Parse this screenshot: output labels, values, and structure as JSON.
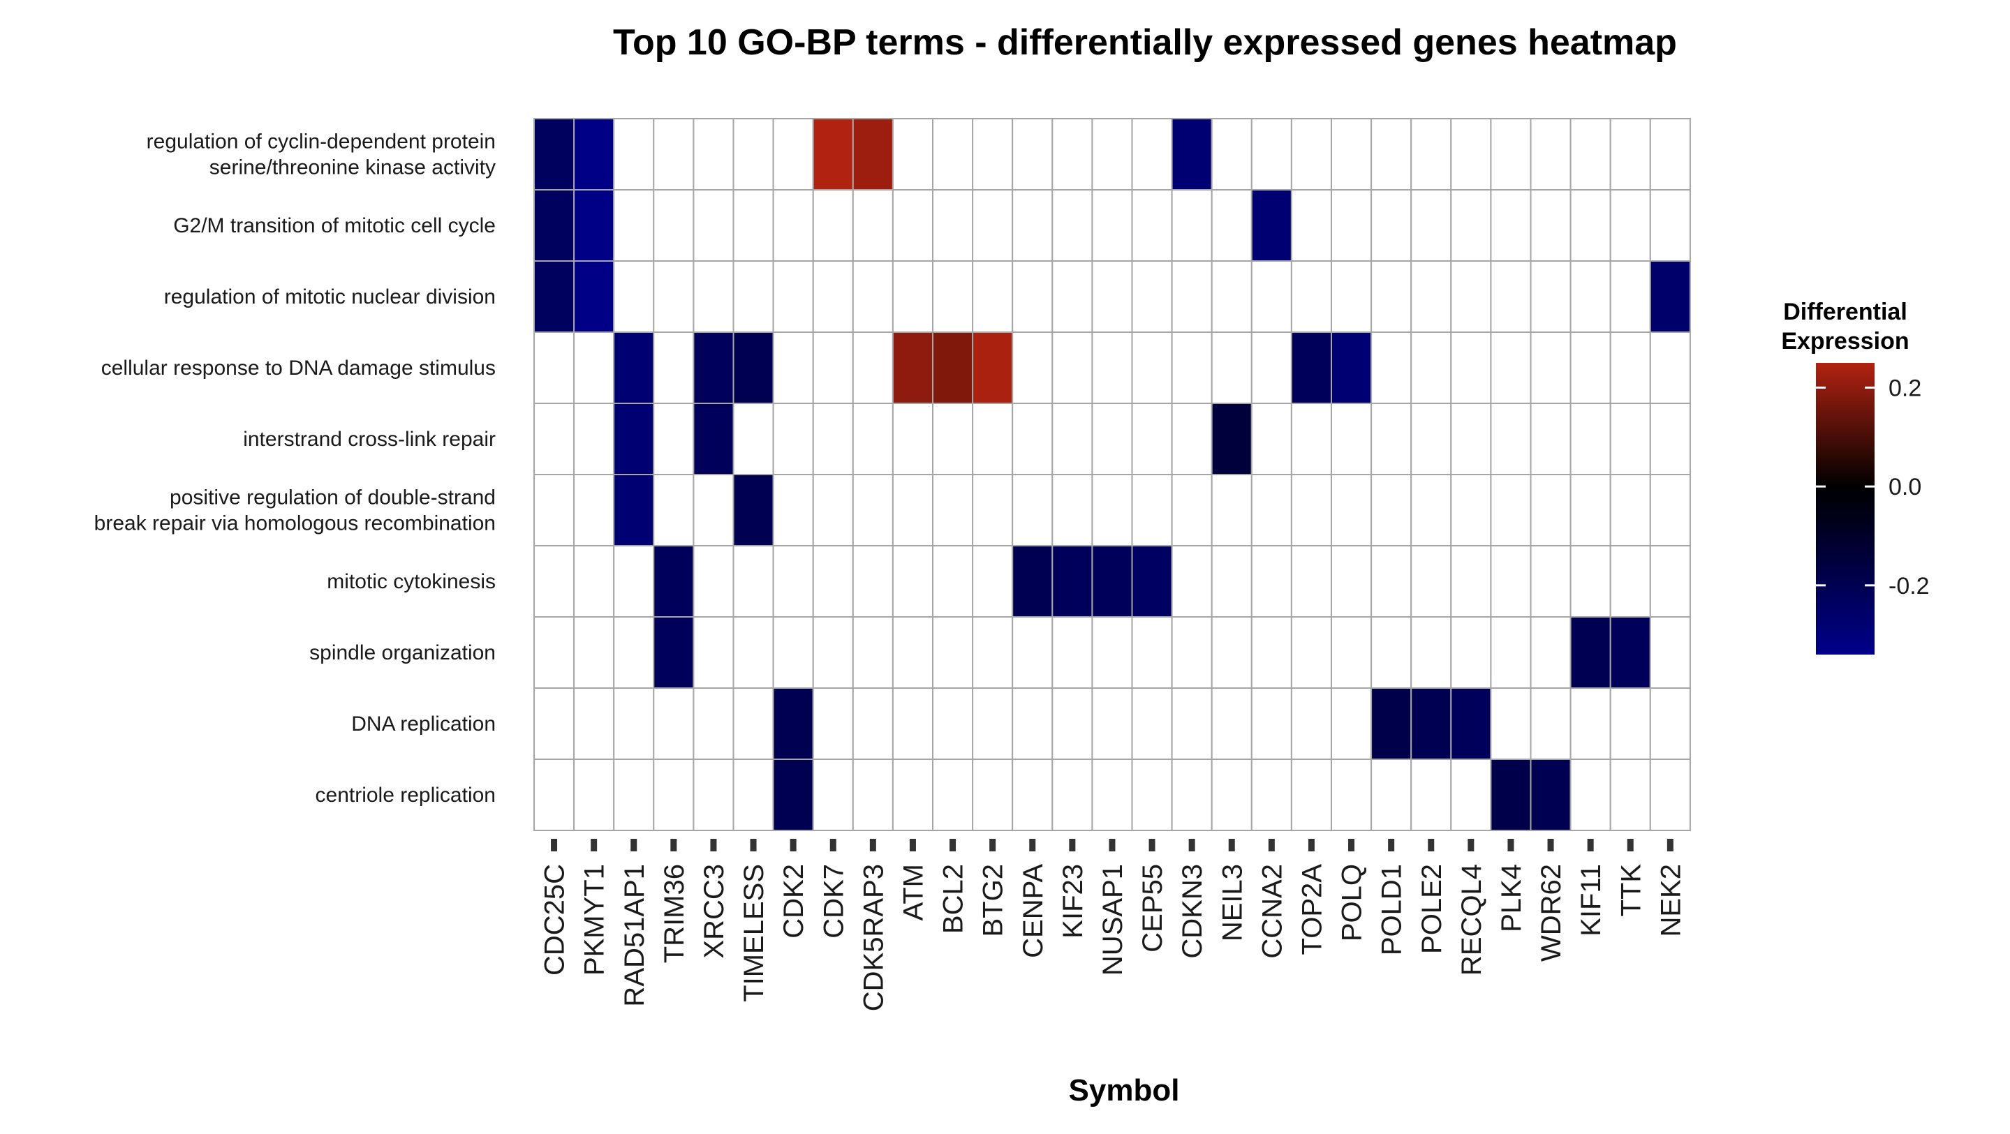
{
  "chart_data": {
    "type": "heatmap",
    "title": "Top 10 GO-BP terms - differentially expressed genes heatmap",
    "xlabel": "Symbol",
    "ylabel": "",
    "x": [
      "CDC25C",
      "PKMYT1",
      "RAD51AP1",
      "TRIM36",
      "XRCC3",
      "TIMELESS",
      "CDK2",
      "CDK7",
      "CDK5RAP3",
      "ATM",
      "BCL2",
      "BTG2",
      "CENPA",
      "KIF23",
      "NUSAP1",
      "CEP55",
      "CDKN3",
      "NEIL3",
      "CCNA2",
      "TOP2A",
      "POLQ",
      "POLD1",
      "POLE2",
      "RECQL4",
      "PLK4",
      "WDR62",
      "KIF11",
      "TTK",
      "NEK2"
    ],
    "y": [
      [
        "regulation of cyclin-dependent protein",
        "serine/threonine kinase activity"
      ],
      [
        "G2/M transition of mitotic cell cycle"
      ],
      [
        "regulation of mitotic nuclear division"
      ],
      [
        "cellular response to DNA damage stimulus"
      ],
      [
        "interstrand cross-link repair"
      ],
      [
        "positive regulation of double-strand",
        "break repair via homologous recombination"
      ],
      [
        "mitotic cytokinesis"
      ],
      [
        "spindle organization"
      ],
      [
        "DNA replication"
      ],
      [
        "centriole replication"
      ]
    ],
    "values": [
      [
        -0.23,
        -0.33,
        null,
        null,
        null,
        null,
        null,
        0.25,
        0.22,
        null,
        null,
        null,
        null,
        null,
        null,
        null,
        -0.28,
        null,
        null,
        null,
        null,
        null,
        null,
        null,
        null,
        null,
        null,
        null,
        null
      ],
      [
        -0.23,
        -0.33,
        null,
        null,
        null,
        null,
        null,
        null,
        null,
        null,
        null,
        null,
        null,
        null,
        null,
        null,
        null,
        null,
        -0.28,
        null,
        null,
        null,
        null,
        null,
        null,
        null,
        null,
        null,
        null
      ],
      [
        -0.23,
        -0.33,
        null,
        null,
        null,
        null,
        null,
        null,
        null,
        null,
        null,
        null,
        null,
        null,
        null,
        null,
        null,
        null,
        null,
        null,
        null,
        null,
        null,
        null,
        null,
        null,
        null,
        null,
        -0.26
      ],
      [
        null,
        null,
        -0.28,
        null,
        -0.22,
        -0.2,
        null,
        null,
        null,
        0.2,
        0.18,
        0.24,
        null,
        null,
        null,
        null,
        null,
        null,
        null,
        -0.22,
        -0.28,
        null,
        null,
        null,
        null,
        null,
        null,
        null,
        null
      ],
      [
        null,
        null,
        -0.28,
        null,
        -0.22,
        null,
        null,
        null,
        null,
        null,
        null,
        null,
        null,
        null,
        null,
        null,
        null,
        -0.15,
        null,
        null,
        null,
        null,
        null,
        null,
        null,
        null,
        null,
        null,
        null
      ],
      [
        null,
        null,
        -0.28,
        null,
        null,
        -0.2,
        null,
        null,
        null,
        null,
        null,
        null,
        null,
        null,
        null,
        null,
        null,
        null,
        null,
        null,
        null,
        null,
        null,
        null,
        null,
        null,
        null,
        null,
        null
      ],
      [
        null,
        null,
        null,
        -0.22,
        null,
        null,
        null,
        null,
        null,
        null,
        null,
        null,
        -0.2,
        -0.22,
        -0.22,
        -0.24,
        null,
        null,
        null,
        null,
        null,
        null,
        null,
        null,
        null,
        null,
        null,
        null,
        null
      ],
      [
        null,
        null,
        null,
        -0.22,
        null,
        null,
        null,
        null,
        null,
        null,
        null,
        null,
        null,
        null,
        null,
        null,
        null,
        null,
        null,
        null,
        null,
        null,
        null,
        null,
        null,
        null,
        -0.2,
        -0.22,
        null
      ],
      [
        null,
        null,
        null,
        null,
        null,
        null,
        -0.2,
        null,
        null,
        null,
        null,
        null,
        null,
        null,
        null,
        null,
        null,
        null,
        null,
        null,
        null,
        -0.18,
        -0.2,
        -0.22,
        null,
        null,
        null,
        null,
        null
      ],
      [
        null,
        null,
        null,
        null,
        null,
        null,
        -0.2,
        null,
        null,
        null,
        null,
        null,
        null,
        null,
        null,
        null,
        null,
        null,
        null,
        null,
        null,
        null,
        null,
        null,
        -0.18,
        -0.2,
        null,
        null,
        null
      ]
    ],
    "color_scale": {
      "low": "#00008b",
      "mid": "#000000",
      "high": "#b22211",
      "missing": "#ffffff",
      "midpoint": 0,
      "domain": [
        -0.34,
        0.25
      ]
    },
    "grid_color": "#a6a6a6",
    "legend": {
      "title": [
        "Differential",
        "Expression"
      ],
      "ticks": [
        0.2,
        0.0,
        -0.2
      ],
      "tick_labels": [
        "0.2",
        "0.0",
        "-0.2"
      ],
      "placement": "right"
    }
  }
}
